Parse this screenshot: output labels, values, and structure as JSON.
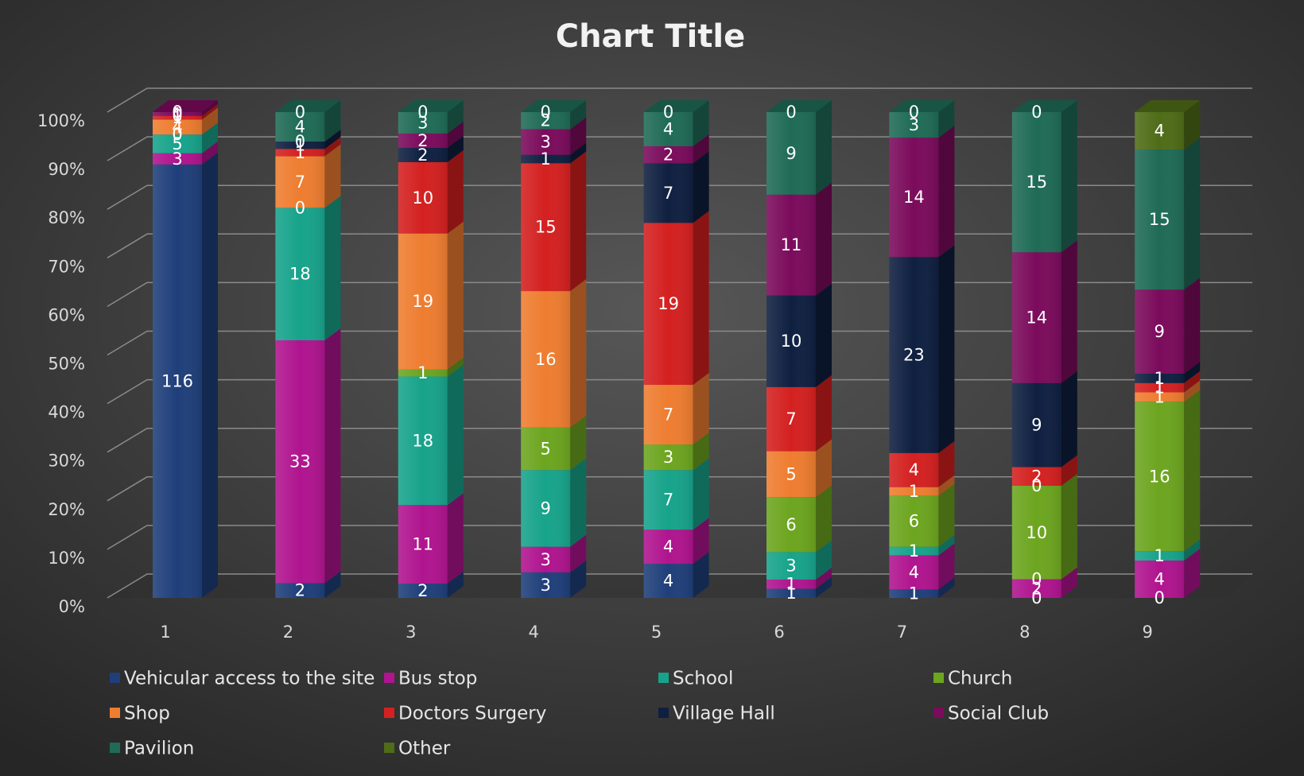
{
  "chart_data": {
    "type": "stacked-bar-100",
    "title": "Chart Title",
    "categories": [
      "1",
      "2",
      "3",
      "4",
      "5",
      "6",
      "7",
      "8",
      "9"
    ],
    "ylim": [
      0,
      100
    ],
    "yticks": [
      {
        "value": 0,
        "label": "0%"
      },
      {
        "value": 10,
        "label": "10%"
      },
      {
        "value": 20,
        "label": "20%"
      },
      {
        "value": 30,
        "label": "30%"
      },
      {
        "value": 40,
        "label": "40%"
      },
      {
        "value": 50,
        "label": "50%"
      },
      {
        "value": 60,
        "label": "60%"
      },
      {
        "value": 70,
        "label": "70%"
      },
      {
        "value": 80,
        "label": "80%"
      },
      {
        "value": 90,
        "label": "90%"
      },
      {
        "value": 100,
        "label": "100%"
      }
    ],
    "grid": true,
    "legend": "bottom",
    "series": [
      {
        "name": "Vehicular access to the site",
        "color": "#1f3f7a",
        "values": [
          116,
          2,
          2,
          3,
          4,
          1,
          1,
          0,
          0
        ]
      },
      {
        "name": "Bus stop",
        "color": "#b0148f",
        "values": [
          3,
          33,
          11,
          3,
          4,
          1,
          4,
          2,
          4
        ]
      },
      {
        "name": "School",
        "color": "#17a38b",
        "values": [
          5,
          18,
          18,
          9,
          7,
          3,
          1,
          0,
          1
        ]
      },
      {
        "name": "Church",
        "color": "#6ca51f",
        "values": [
          0,
          0,
          1,
          5,
          3,
          6,
          6,
          10,
          16
        ]
      },
      {
        "name": "Shop",
        "color": "#ee7d30",
        "values": [
          4,
          7,
          19,
          16,
          7,
          5,
          1,
          0,
          1
        ]
      },
      {
        "name": "Doctors Surgery",
        "color": "#d42020",
        "values": [
          1,
          1,
          10,
          15,
          19,
          7,
          4,
          2,
          1
        ]
      },
      {
        "name": "Village Hall",
        "color": "#0f1f40",
        "values": [
          0,
          1,
          2,
          1,
          7,
          10,
          23,
          9,
          1
        ]
      },
      {
        "name": "Social Club",
        "color": "#7b0b5c",
        "values": [
          1,
          0,
          2,
          3,
          2,
          11,
          14,
          14,
          9
        ]
      },
      {
        "name": "Pavilion",
        "color": "#1f6b56",
        "values": [
          0,
          4,
          3,
          2,
          4,
          9,
          3,
          15,
          15
        ]
      },
      {
        "name": "Other",
        "color": "#4f6c17",
        "values": [
          0,
          0,
          0,
          0,
          0,
          0,
          0,
          0,
          4
        ]
      }
    ]
  }
}
